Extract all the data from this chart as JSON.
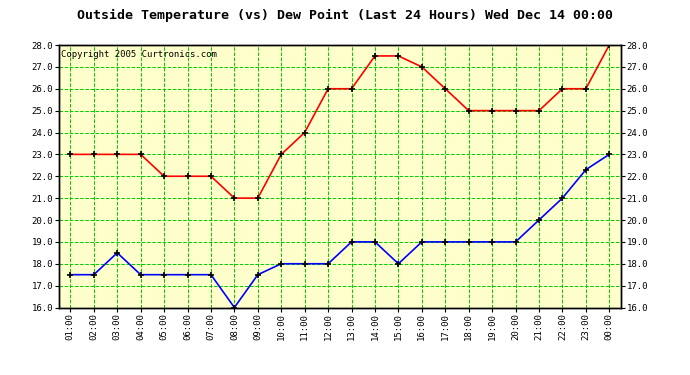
{
  "title": "Outside Temperature (vs) Dew Point (Last 24 Hours) Wed Dec 14 00:00",
  "copyright": "Copyright 2005 Curtronics.com",
  "x_labels": [
    "01:00",
    "02:00",
    "03:00",
    "04:00",
    "05:00",
    "06:00",
    "07:00",
    "08:00",
    "09:00",
    "10:00",
    "11:00",
    "12:00",
    "13:00",
    "14:00",
    "15:00",
    "16:00",
    "17:00",
    "18:00",
    "19:00",
    "20:00",
    "21:00",
    "22:00",
    "23:00",
    "00:00"
  ],
  "red_data": [
    23.0,
    23.0,
    23.0,
    23.0,
    22.0,
    22.0,
    22.0,
    21.0,
    21.0,
    23.0,
    24.0,
    26.0,
    26.0,
    27.5,
    27.5,
    27.0,
    26.0,
    25.0,
    25.0,
    25.0,
    25.0,
    26.0,
    26.0,
    28.0
  ],
  "blue_data": [
    17.5,
    17.5,
    18.5,
    17.5,
    17.5,
    17.5,
    17.5,
    16.0,
    17.5,
    18.0,
    18.0,
    18.0,
    19.0,
    19.0,
    18.0,
    19.0,
    19.0,
    19.0,
    19.0,
    19.0,
    20.0,
    21.0,
    22.3,
    23.0
  ],
  "red_color": "#ff0000",
  "blue_color": "#0000ff",
  "fig_bg_color": "#ffffff",
  "plot_bg_color": "#ffffcc",
  "grid_color": "#00cc00",
  "title_text_color": "#000000",
  "ymin": 16.0,
  "ymax": 28.0,
  "ytick_step": 1.0
}
